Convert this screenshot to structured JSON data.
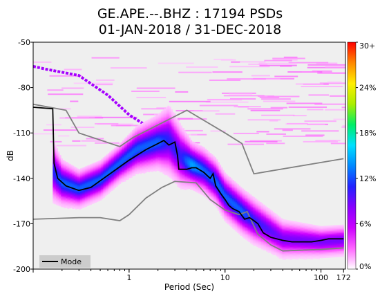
{
  "chart_data": {
    "type": "heatmap",
    "title_line1": "GE.APE.--.BHZ : 17194 PSDs",
    "title_line2": "01-JAN-2018 / 31-DEC-2018",
    "xlabel": "Period (Sec)",
    "ylabel": "dB",
    "x_scale": "log",
    "xlim": [
      0.1,
      180
    ],
    "ylim": [
      -200,
      -50
    ],
    "x_ticks": [
      {
        "value": 1,
        "label": "1"
      },
      {
        "value": 10,
        "label": "10"
      },
      {
        "value": 100,
        "label": "100"
      },
      {
        "value": 172,
        "label": "172"
      }
    ],
    "y_ticks": [
      {
        "value": -50,
        "label": "-50"
      },
      {
        "value": -80,
        "label": "-80"
      },
      {
        "value": -110,
        "label": "-110"
      },
      {
        "value": -140,
        "label": "-140"
      },
      {
        "value": -170,
        "label": "-170"
      },
      {
        "value": -200,
        "label": "-200"
      }
    ],
    "colorbar": {
      "ticks": [
        {
          "value": 0,
          "label": "0%"
        },
        {
          "value": 6,
          "label": "6%"
        },
        {
          "value": 12,
          "label": "12%"
        },
        {
          "value": 18,
          "label": "18%"
        },
        {
          "value": 24,
          "label": "24%"
        },
        {
          "value": 30,
          "label": "30+"
        }
      ],
      "range": [
        0,
        30
      ],
      "colors": [
        "#ffffff",
        "#ff66ff",
        "#cc00ff",
        "#8800ff",
        "#2222ff",
        "#0088ff",
        "#00e0ff",
        "#00ee66",
        "#aaee00",
        "#ffee00",
        "#ff8800",
        "#ff0000"
      ]
    },
    "legend": {
      "placement": "bottom-left",
      "entries": [
        {
          "name": "Mode",
          "color": "#000000"
        }
      ]
    },
    "mode_curve": {
      "x": [
        0.1,
        0.16,
        0.165,
        0.18,
        0.22,
        0.3,
        0.4,
        0.6,
        1.0,
        1.5,
        2.0,
        2.3,
        2.6,
        3.0,
        3.2,
        3.3,
        4.0,
        4.5,
        5.0,
        6.0,
        7.0,
        7.5,
        8.0,
        9.0,
        10.0,
        11.0,
        12.0,
        14.0,
        16.0,
        18.0,
        20.0,
        22.0,
        25.0,
        30.0,
        40.0,
        50.0,
        60.0,
        80.0,
        100.0,
        120.0,
        150.0,
        172.0
      ],
      "y": [
        -93,
        -94,
        -130,
        -140,
        -145,
        -148,
        -146,
        -138,
        -128,
        -121,
        -117,
        -115,
        -118,
        -116,
        -125,
        -134,
        -134,
        -133,
        -133,
        -136,
        -140,
        -137,
        -145,
        -150,
        -154,
        -158,
        -160,
        -162,
        -167,
        -166,
        -168,
        -170,
        -176,
        -179,
        -181,
        -182,
        -182,
        -182,
        -181,
        -180,
        -180,
        -180
      ]
    },
    "upper_noise_model": {
      "x": [
        0.1,
        0.22,
        0.3,
        0.8,
        1.1,
        4.0,
        10.0,
        15.0,
        20.0,
        172.0
      ],
      "y": [
        -91,
        -95,
        -110,
        -119,
        -113,
        -95,
        -110,
        -117,
        -137,
        -127
      ]
    },
    "lower_noise_model": {
      "x": [
        0.1,
        0.3,
        0.5,
        0.8,
        1.0,
        1.5,
        2.2,
        3.0,
        5.0,
        7.0,
        10.0,
        14.0,
        17.0,
        22.0,
        30.0,
        40.0,
        100.0,
        172.0
      ],
      "y": [
        -167,
        -166,
        -166,
        -168,
        -164,
        -153,
        -146,
        -142,
        -143,
        -154,
        -161,
        -164,
        -162,
        -177,
        -184,
        -188,
        -187,
        -186
      ]
    },
    "density_band": {
      "x": [
        0.16,
        0.2,
        0.3,
        0.5,
        0.8,
        1.2,
        2.0,
        2.6,
        3.5,
        4.5,
        6.0,
        8.0,
        10.0,
        15.0,
        20.0,
        40.0,
        100.0,
        172.0
      ],
      "y_center": [
        -135,
        -143,
        -147,
        -141,
        -130,
        -121,
        -116,
        -115,
        -126,
        -131,
        -135,
        -142,
        -152,
        -162,
        -168,
        -180,
        -182,
        -181
      ],
      "half_width_db": [
        8,
        6,
        5,
        5,
        5,
        6,
        7,
        9,
        8,
        6,
        6,
        6,
        6,
        6,
        6,
        5,
        4,
        4
      ],
      "peak_percent": [
        10,
        12,
        12,
        12,
        12,
        12,
        12,
        10,
        10,
        14,
        12,
        12,
        12,
        12,
        10,
        8,
        8,
        8
      ]
    },
    "diagonal_streak": {
      "x": [
        0.1,
        0.14,
        0.3,
        0.6,
        1.0,
        2.0
      ],
      "y": [
        -66,
        -68,
        -72,
        -85,
        -98,
        -110
      ],
      "percent": 3
    },
    "upper_scatter": {
      "x_range": [
        0.1,
        172.0
      ],
      "y_range": [
        -58,
        -118
      ],
      "percent": 1
    }
  }
}
